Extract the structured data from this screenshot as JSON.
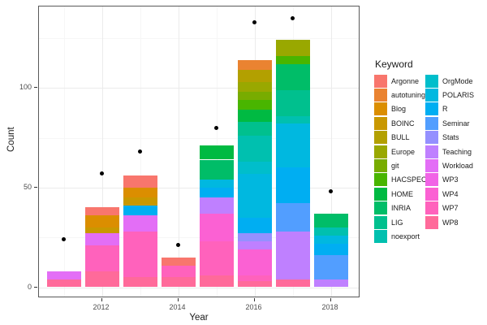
{
  "chart_data": {
    "type": "bar",
    "subtype": "stacked-with-points",
    "title": "",
    "xlabel": "Year",
    "ylabel": "Count",
    "x_ticks": [
      2012,
      2014,
      2016,
      2018
    ],
    "x_minor": [
      2011,
      2013,
      2015,
      2017
    ],
    "y_ticks": [
      0,
      50,
      100
    ],
    "y_minor": [
      25,
      75,
      125
    ],
    "xlim": [
      2010.4,
      2018.8
    ],
    "ylim": [
      -5.6,
      140.6
    ],
    "grid": "on",
    "legend_position": "right",
    "bars": [
      {
        "year": 2011,
        "total": 8,
        "segments": [
          {
            "keyword": "WP8",
            "value": 4
          },
          {
            "keyword": "Workload",
            "value": 4
          }
        ]
      },
      {
        "year": 2012,
        "total": 40,
        "segments": [
          {
            "keyword": "WP8",
            "value": 8
          },
          {
            "keyword": "WP7",
            "value": 13
          },
          {
            "keyword": "Workload",
            "value": 6
          },
          {
            "keyword": "BOINC",
            "value": 3
          },
          {
            "keyword": "Blog",
            "value": 6
          },
          {
            "keyword": "Argonne",
            "value": 4
          }
        ]
      },
      {
        "year": 2013,
        "total": 56,
        "segments": [
          {
            "keyword": "WP8",
            "value": 5
          },
          {
            "keyword": "WP7",
            "value": 23
          },
          {
            "keyword": "Workload",
            "value": 8
          },
          {
            "keyword": "R",
            "value": 5
          },
          {
            "keyword": "BOINC",
            "value": 4
          },
          {
            "keyword": "Blog",
            "value": 5
          },
          {
            "keyword": "Argonne",
            "value": 6
          }
        ]
      },
      {
        "year": 2014,
        "total": 15,
        "segments": [
          {
            "keyword": "WP8",
            "value": 5
          },
          {
            "keyword": "WP7",
            "value": 6
          },
          {
            "keyword": "Argonne",
            "value": 4
          }
        ]
      },
      {
        "year": 2015,
        "total": 71,
        "segments": [
          {
            "keyword": "WP8",
            "value": 6
          },
          {
            "keyword": "WP7",
            "value": 17
          },
          {
            "keyword": "WP4",
            "value": 14
          },
          {
            "keyword": "Teaching",
            "value": 8
          },
          {
            "keyword": "R",
            "value": 5
          },
          {
            "keyword": "POLARIS",
            "value": 4
          },
          {
            "keyword": "INRIA",
            "value": 10
          },
          {
            "keyword": "HOME",
            "value": 7
          }
        ]
      },
      {
        "year": 2016,
        "total": 114,
        "segments": [
          {
            "keyword": "WP8",
            "value": 3
          },
          {
            "keyword": "WP7",
            "value": 3
          },
          {
            "keyword": "WP4",
            "value": 13
          },
          {
            "keyword": "Teaching",
            "value": 4
          },
          {
            "keyword": "Stats",
            "value": 4
          },
          {
            "keyword": "R",
            "value": 8
          },
          {
            "keyword": "POLARIS",
            "value": 22
          },
          {
            "keyword": "OrgMode",
            "value": 6
          },
          {
            "keyword": "noexport",
            "value": 13
          },
          {
            "keyword": "LIG",
            "value": 7
          },
          {
            "keyword": "HOME",
            "value": 6
          },
          {
            "keyword": "HACSPECIS",
            "value": 5
          },
          {
            "keyword": "git",
            "value": 4
          },
          {
            "keyword": "Europe",
            "value": 5
          },
          {
            "keyword": "BULL",
            "value": 6
          },
          {
            "keyword": "autotuning",
            "value": 5
          }
        ]
      },
      {
        "year": 2017,
        "total": 124,
        "segments": [
          {
            "keyword": "WP8",
            "value": 4
          },
          {
            "keyword": "Teaching",
            "value": 24
          },
          {
            "keyword": "Seminar",
            "value": 14
          },
          {
            "keyword": "R",
            "value": 18
          },
          {
            "keyword": "POLARIS",
            "value": 22
          },
          {
            "keyword": "noexport",
            "value": 4
          },
          {
            "keyword": "LIG",
            "value": 13
          },
          {
            "keyword": "INRIA",
            "value": 13
          },
          {
            "keyword": "HACSPECIS",
            "value": 4
          },
          {
            "keyword": "Europe",
            "value": 8
          }
        ]
      },
      {
        "year": 2018,
        "total": 37,
        "segments": [
          {
            "keyword": "Teaching",
            "value": 4
          },
          {
            "keyword": "Seminar",
            "value": 12
          },
          {
            "keyword": "R",
            "value": 6
          },
          {
            "keyword": "POLARIS",
            "value": 4
          },
          {
            "keyword": "noexport",
            "value": 4
          },
          {
            "keyword": "INRIA",
            "value": 7
          }
        ]
      }
    ],
    "points": [
      {
        "year": 2011,
        "value": 24
      },
      {
        "year": 2012,
        "value": 57
      },
      {
        "year": 2013,
        "value": 68
      },
      {
        "year": 2014,
        "value": 21
      },
      {
        "year": 2015,
        "value": 80
      },
      {
        "year": 2016,
        "value": 133
      },
      {
        "year": 2017,
        "value": 135
      },
      {
        "year": 2018,
        "value": 48
      }
    ]
  },
  "legend": {
    "title": "Keyword",
    "entries": [
      {
        "label": "Argonne",
        "color": "#F8766D"
      },
      {
        "label": "autotuning",
        "color": "#EA8331"
      },
      {
        "label": "Blog",
        "color": "#DB8E00"
      },
      {
        "label": "BOINC",
        "color": "#C99800"
      },
      {
        "label": "BULL",
        "color": "#B3A000"
      },
      {
        "label": "Europe",
        "color": "#99A800"
      },
      {
        "label": "git",
        "color": "#78AC00"
      },
      {
        "label": "HACSPECIS",
        "color": "#49B500"
      },
      {
        "label": "HOME",
        "color": "#00BA42"
      },
      {
        "label": "INRIA",
        "color": "#00BD68"
      },
      {
        "label": "LIG",
        "color": "#00C08E"
      },
      {
        "label": "noexport",
        "color": "#00C0AF"
      },
      {
        "label": "OrgMode",
        "color": "#00BECB"
      },
      {
        "label": "POLARIS",
        "color": "#00B8E0"
      },
      {
        "label": "R",
        "color": "#00AEF2"
      },
      {
        "label": "Seminar",
        "color": "#529EFF"
      },
      {
        "label": "Stats",
        "color": "#9490FF"
      },
      {
        "label": "Teaching",
        "color": "#BF80FF"
      },
      {
        "label": "Workload",
        "color": "#E36EF6"
      },
      {
        "label": "WP3",
        "color": "#F163E6"
      },
      {
        "label": "WP4",
        "color": "#FB61D3"
      },
      {
        "label": "WP7",
        "color": "#FF62BC"
      },
      {
        "label": "WP8",
        "color": "#FF6A9A"
      }
    ]
  }
}
